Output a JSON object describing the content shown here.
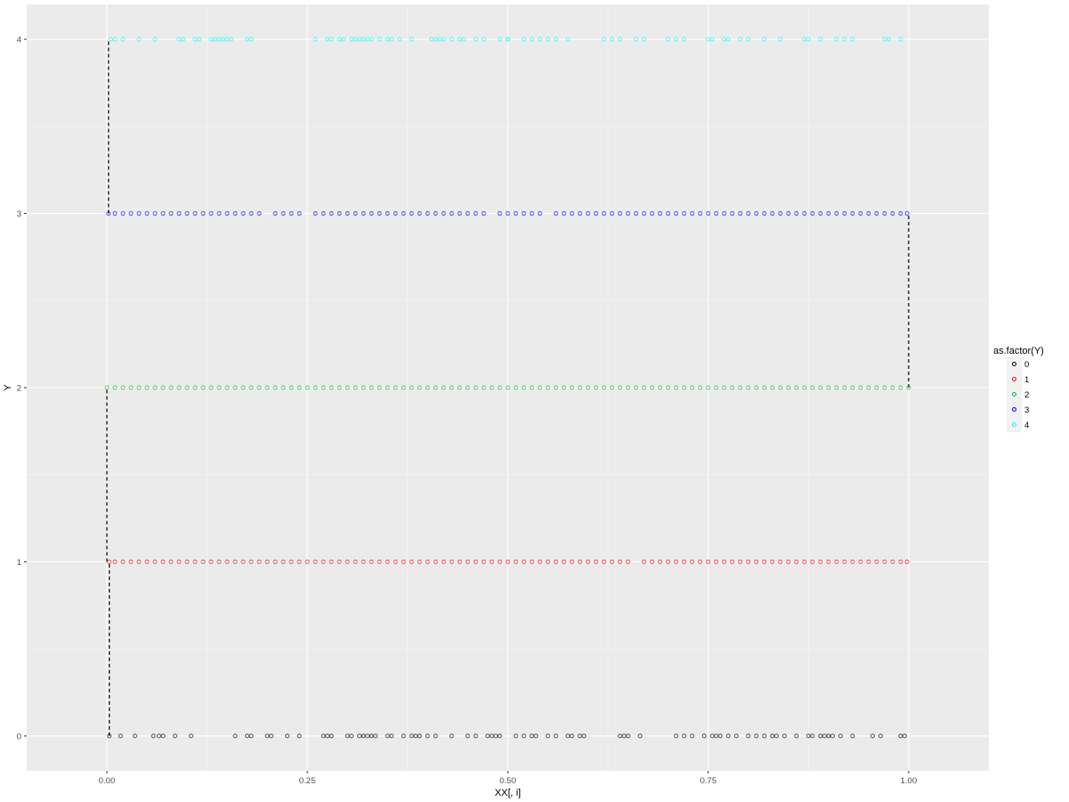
{
  "chart_data": {
    "type": "scatter",
    "xlabel": "XX[, i]",
    "ylabel": "Y",
    "xlim": [
      -0.1,
      1.1
    ],
    "ylim": [
      -0.2,
      4.2
    ],
    "x_ticks": [
      0.0,
      0.25,
      0.5,
      0.75,
      1.0
    ],
    "x_tick_labels": [
      "0.00",
      "0.25",
      "0.50",
      "0.75",
      "1.00"
    ],
    "y_ticks": [
      0,
      1,
      2,
      3,
      4
    ],
    "y_tick_labels": [
      "0",
      "1",
      "2",
      "3",
      "4"
    ],
    "grid": true,
    "legend": {
      "title": "as.factor(Y)",
      "position": "right",
      "entries": [
        "0",
        "1",
        "2",
        "3",
        "4"
      ]
    },
    "series": [
      {
        "name": "0",
        "color": "#000000",
        "y": 0,
        "x": [
          0.003,
          0.017,
          0.035,
          0.058,
          0.065,
          0.07,
          0.085,
          0.105,
          0.16,
          0.175,
          0.18,
          0.2,
          0.205,
          0.225,
          0.24,
          0.27,
          0.275,
          0.28,
          0.3,
          0.305,
          0.315,
          0.32,
          0.325,
          0.33,
          0.335,
          0.35,
          0.355,
          0.37,
          0.38,
          0.385,
          0.39,
          0.4,
          0.41,
          0.43,
          0.45,
          0.46,
          0.475,
          0.48,
          0.485,
          0.49,
          0.51,
          0.52,
          0.53,
          0.535,
          0.55,
          0.56,
          0.575,
          0.58,
          0.59,
          0.595,
          0.64,
          0.645,
          0.65,
          0.665,
          0.71,
          0.72,
          0.73,
          0.745,
          0.755,
          0.76,
          0.765,
          0.775,
          0.785,
          0.8,
          0.81,
          0.82,
          0.83,
          0.835,
          0.845,
          0.86,
          0.875,
          0.88,
          0.89,
          0.895,
          0.9,
          0.905,
          0.915,
          0.93,
          0.955,
          0.965,
          0.99,
          0.995
        ]
      },
      {
        "name": "1",
        "color": "#ff0000",
        "y": 1,
        "x": [
          0.003,
          0.01,
          0.02,
          0.03,
          0.04,
          0.05,
          0.06,
          0.07,
          0.08,
          0.09,
          0.1,
          0.11,
          0.12,
          0.13,
          0.14,
          0.15,
          0.16,
          0.17,
          0.18,
          0.19,
          0.2,
          0.21,
          0.22,
          0.23,
          0.24,
          0.25,
          0.26,
          0.27,
          0.28,
          0.29,
          0.3,
          0.31,
          0.32,
          0.33,
          0.34,
          0.35,
          0.36,
          0.37,
          0.38,
          0.39,
          0.4,
          0.41,
          0.42,
          0.43,
          0.44,
          0.45,
          0.46,
          0.47,
          0.48,
          0.49,
          0.5,
          0.51,
          0.52,
          0.53,
          0.54,
          0.55,
          0.56,
          0.57,
          0.58,
          0.59,
          0.6,
          0.61,
          0.62,
          0.63,
          0.64,
          0.65,
          0.67,
          0.68,
          0.69,
          0.7,
          0.71,
          0.72,
          0.73,
          0.74,
          0.75,
          0.76,
          0.77,
          0.78,
          0.79,
          0.8,
          0.81,
          0.82,
          0.83,
          0.84,
          0.85,
          0.86,
          0.87,
          0.88,
          0.89,
          0.9,
          0.91,
          0.92,
          0.93,
          0.94,
          0.95,
          0.96,
          0.97,
          0.98,
          0.99,
          0.998
        ]
      },
      {
        "name": "2",
        "color": "#00ba38",
        "y": 2,
        "x": [
          0.0,
          0.01,
          0.02,
          0.03,
          0.04,
          0.05,
          0.06,
          0.07,
          0.08,
          0.09,
          0.1,
          0.11,
          0.12,
          0.13,
          0.14,
          0.15,
          0.16,
          0.17,
          0.18,
          0.19,
          0.2,
          0.21,
          0.22,
          0.23,
          0.24,
          0.25,
          0.26,
          0.27,
          0.28,
          0.29,
          0.3,
          0.31,
          0.32,
          0.33,
          0.34,
          0.35,
          0.36,
          0.37,
          0.38,
          0.39,
          0.4,
          0.41,
          0.42,
          0.43,
          0.44,
          0.45,
          0.46,
          0.47,
          0.48,
          0.49,
          0.5,
          0.51,
          0.52,
          0.53,
          0.54,
          0.55,
          0.56,
          0.57,
          0.58,
          0.59,
          0.6,
          0.61,
          0.62,
          0.63,
          0.64,
          0.65,
          0.66,
          0.67,
          0.68,
          0.69,
          0.7,
          0.71,
          0.72,
          0.73,
          0.74,
          0.75,
          0.76,
          0.77,
          0.78,
          0.79,
          0.8,
          0.81,
          0.82,
          0.83,
          0.84,
          0.85,
          0.86,
          0.87,
          0.88,
          0.89,
          0.9,
          0.91,
          0.92,
          0.93,
          0.94,
          0.95,
          0.96,
          0.97,
          0.98,
          0.99,
          1.0
        ]
      },
      {
        "name": "3",
        "color": "#0000ff",
        "y": 3,
        "x": [
          0.002,
          0.01,
          0.02,
          0.03,
          0.04,
          0.05,
          0.06,
          0.07,
          0.08,
          0.09,
          0.1,
          0.11,
          0.12,
          0.13,
          0.14,
          0.15,
          0.16,
          0.17,
          0.18,
          0.19,
          0.21,
          0.22,
          0.23,
          0.24,
          0.26,
          0.27,
          0.28,
          0.29,
          0.3,
          0.31,
          0.32,
          0.33,
          0.34,
          0.35,
          0.36,
          0.37,
          0.38,
          0.39,
          0.4,
          0.41,
          0.42,
          0.43,
          0.44,
          0.45,
          0.46,
          0.47,
          0.49,
          0.5,
          0.51,
          0.52,
          0.53,
          0.54,
          0.56,
          0.57,
          0.58,
          0.59,
          0.6,
          0.61,
          0.62,
          0.63,
          0.64,
          0.65,
          0.66,
          0.67,
          0.68,
          0.69,
          0.7,
          0.71,
          0.72,
          0.73,
          0.74,
          0.75,
          0.76,
          0.77,
          0.78,
          0.79,
          0.8,
          0.81,
          0.82,
          0.83,
          0.84,
          0.85,
          0.86,
          0.87,
          0.88,
          0.89,
          0.9,
          0.91,
          0.92,
          0.93,
          0.94,
          0.95,
          0.96,
          0.97,
          0.98,
          0.99,
          0.998
        ]
      },
      {
        "name": "4",
        "color": "#00ffff",
        "y": 4,
        "x": [
          0.005,
          0.01,
          0.02,
          0.04,
          0.06,
          0.09,
          0.095,
          0.11,
          0.115,
          0.13,
          0.135,
          0.14,
          0.145,
          0.15,
          0.155,
          0.175,
          0.18,
          0.26,
          0.275,
          0.28,
          0.29,
          0.295,
          0.305,
          0.31,
          0.315,
          0.32,
          0.325,
          0.33,
          0.34,
          0.35,
          0.355,
          0.365,
          0.38,
          0.405,
          0.41,
          0.415,
          0.42,
          0.43,
          0.44,
          0.445,
          0.46,
          0.47,
          0.49,
          0.5,
          0.5,
          0.52,
          0.53,
          0.54,
          0.55,
          0.56,
          0.575,
          0.62,
          0.63,
          0.64,
          0.66,
          0.67,
          0.7,
          0.71,
          0.72,
          0.75,
          0.755,
          0.77,
          0.775,
          0.79,
          0.8,
          0.82,
          0.84,
          0.87,
          0.875,
          0.89,
          0.91,
          0.92,
          0.93,
          0.97,
          0.975,
          0.99
        ]
      }
    ]
  }
}
